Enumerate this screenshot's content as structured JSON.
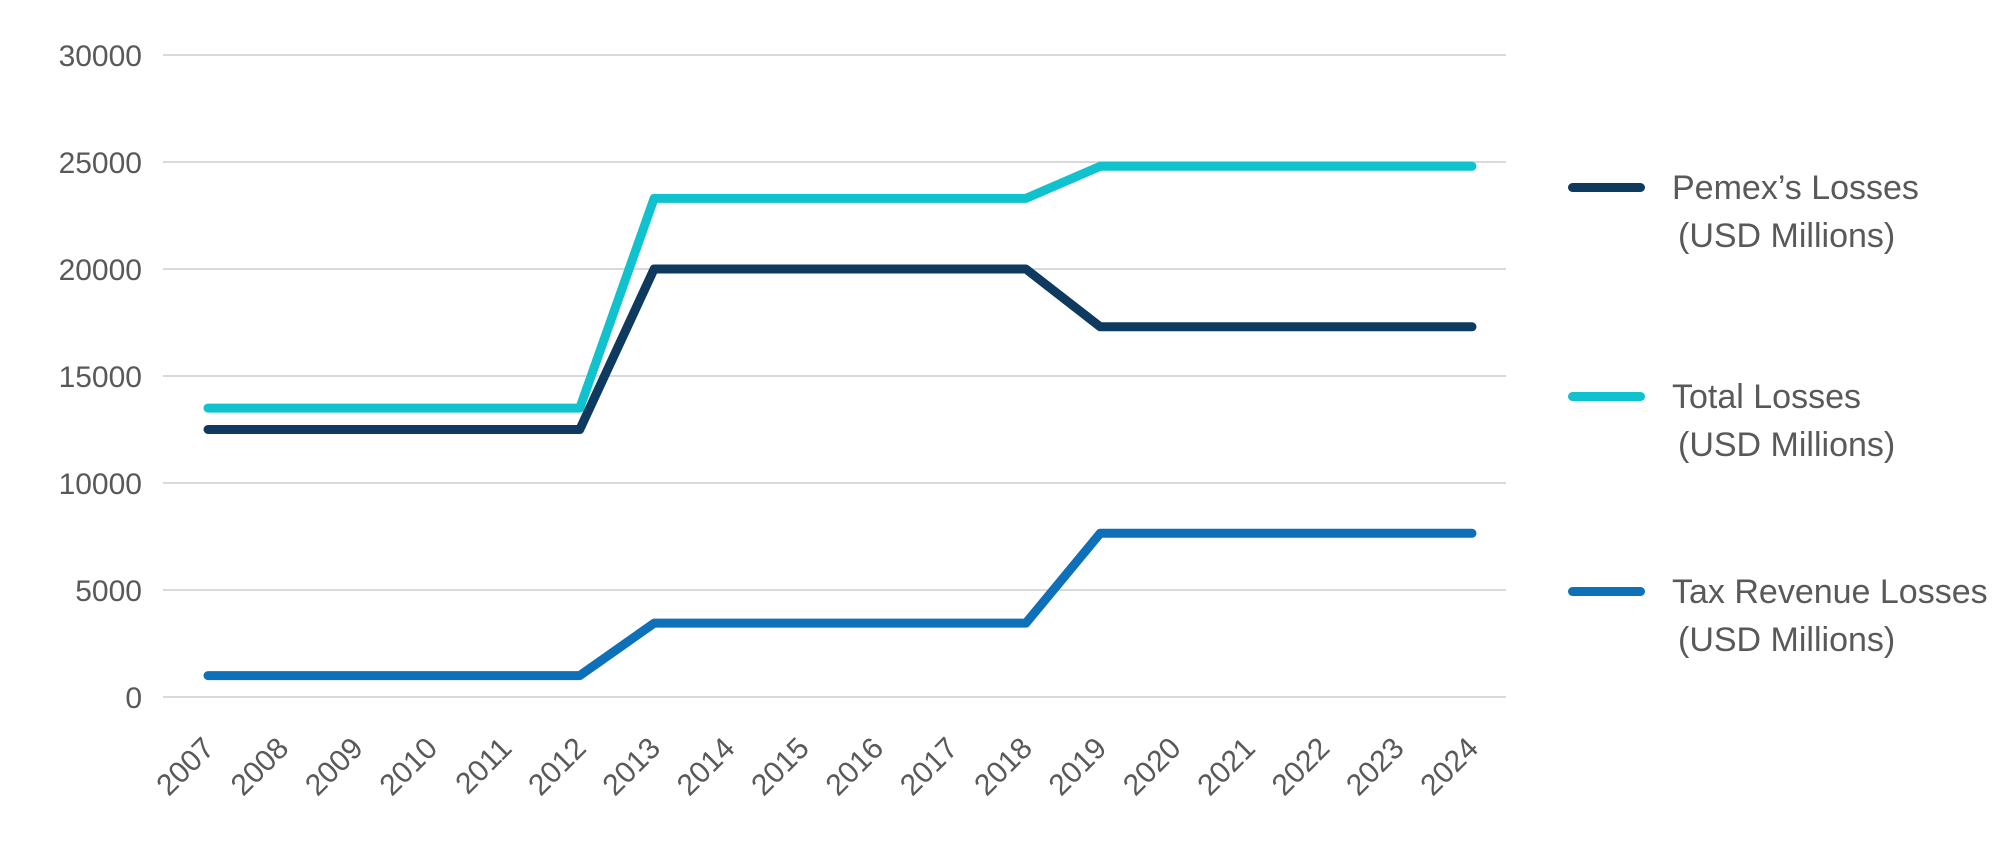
{
  "chart_data": {
    "type": "line",
    "title": "",
    "xlabel": "",
    "ylabel": "",
    "categories": [
      "2007",
      "2008",
      "2009",
      "2010",
      "2011",
      "2012",
      "2013",
      "2014",
      "2015",
      "2016",
      "2017",
      "2018",
      "2019",
      "2020",
      "2021",
      "2022",
      "2023",
      "2024"
    ],
    "series": [
      {
        "name": "Pemex’s Losses",
        "unit": "(USD Millions)",
        "color": "#0f3a5f",
        "values": [
          12500,
          12500,
          12500,
          12500,
          12500,
          12500,
          20000,
          20000,
          20000,
          20000,
          20000,
          20000,
          17300,
          17300,
          17300,
          17300,
          17300,
          17300
        ]
      },
      {
        "name": "Total Losses",
        "unit": "(USD Millions)",
        "color": "#0fc2cd",
        "values": [
          13500,
          13500,
          13500,
          13500,
          13500,
          13500,
          23300,
          23300,
          23300,
          23300,
          23300,
          23300,
          24800,
          24800,
          24800,
          24800,
          24800,
          24800
        ]
      },
      {
        "name": "Tax Revenue Losses",
        "unit": "(USD Millions)",
        "color": "#0e70b8",
        "values": [
          1000,
          1000,
          1000,
          1000,
          1000,
          1000,
          3450,
          3450,
          3450,
          3450,
          3450,
          3450,
          7650,
          7650,
          7650,
          7650,
          7650,
          7650
        ]
      }
    ],
    "ylim": [
      0,
      30000
    ],
    "yticks": [
      0,
      5000,
      10000,
      15000,
      20000,
      25000,
      30000
    ],
    "grid": "horizontal",
    "legend_position": "right",
    "line_width": 9
  },
  "styles": {
    "background": "#ffffff",
    "grid_color": "#d9d9d9",
    "tick_label_color": "#595959",
    "legend_text_color": "#595959"
  }
}
